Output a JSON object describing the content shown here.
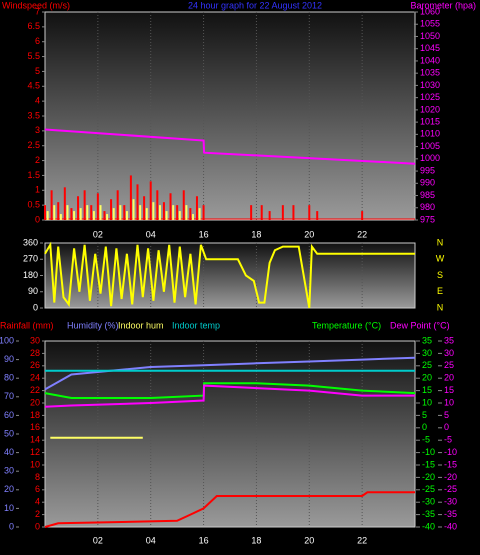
{
  "chart_data": [
    {
      "type": "line",
      "title": "24 hour graph for  22 August 2012",
      "ylabel": "Windspeed (m/s)",
      "y2label": "Barometer (hpa)",
      "axis_colors": {
        "y": "#ff0000",
        "y2": "#ff00ff",
        "title": "#3333ff"
      },
      "xlim": [
        0,
        14
      ],
      "xticks": [
        {
          "value": 2,
          "label": "02"
        },
        {
          "value": 4,
          "label": "04"
        },
        {
          "value": 6,
          "label": "16"
        },
        {
          "value": 8,
          "label": "18"
        },
        {
          "value": 10,
          "label": "20"
        },
        {
          "value": 12,
          "label": "22"
        }
      ],
      "ylim": [
        0,
        7
      ],
      "yticks": [
        0,
        0.5,
        1,
        1.5,
        2,
        2.5,
        3,
        3.5,
        4,
        4.5,
        5,
        5.5,
        6,
        6.5,
        7
      ],
      "y2lim": [
        975,
        1060
      ],
      "y2ticks": [
        975,
        980,
        985,
        990,
        995,
        1000,
        1005,
        1010,
        1015,
        1020,
        1025,
        1030,
        1035,
        1040,
        1045,
        1050,
        1055,
        1060
      ],
      "series": [
        {
          "type": "bar",
          "color": "#ff0000",
          "x": [
            0,
            0.25,
            0.5,
            0.75,
            1,
            1.25,
            1.5,
            1.75,
            2,
            2.25,
            2.5,
            2.75,
            3,
            3.25,
            3.5,
            3.75,
            4,
            4.25,
            4.5,
            4.75,
            5,
            5.25,
            5.5,
            5.75,
            6,
            7.8,
            8.2,
            8.5,
            9,
            9.4,
            10,
            10.3,
            12
          ],
          "values": [
            0.5,
            1,
            0.6,
            1.1,
            0.4,
            0.8,
            1,
            0.5,
            0.9,
            0.3,
            0.7,
            1,
            0.5,
            1.5,
            1.2,
            0.8,
            1.3,
            1,
            0.6,
            0.9,
            0.5,
            1,
            0.4,
            0.8,
            0.5,
            0.5,
            0.5,
            0.3,
            0.5,
            0.5,
            0.5,
            0.3,
            0.3
          ]
        },
        {
          "type": "bar",
          "color": "#ffff66",
          "x": [
            0.1,
            0.35,
            0.6,
            0.85,
            1.1,
            1.35,
            1.6,
            1.85,
            2.1,
            2.35,
            2.6,
            2.85,
            3.1,
            3.35,
            3.6,
            3.85,
            4.1,
            4.35,
            4.6,
            4.85,
            5.1,
            5.35,
            5.6,
            5.85
          ],
          "values": [
            0.3,
            0.5,
            0.2,
            0.5,
            0.3,
            0.4,
            0.5,
            0.3,
            0.5,
            0.2,
            0.4,
            0.5,
            0.3,
            0.7,
            0.5,
            0.4,
            0.6,
            0.5,
            0.3,
            0.5,
            0.3,
            0.5,
            0.2,
            0.4
          ]
        },
        {
          "type": "line",
          "axis": "y2",
          "color": "#ff00ff",
          "x": [
            0,
            6,
            6.02,
            14
          ],
          "values": [
            1012,
            1007.5,
            1002.5,
            998
          ]
        }
      ]
    },
    {
      "type": "line",
      "compass": [
        "N",
        "W",
        "S",
        "E",
        "N"
      ],
      "axis_colors": {
        "y": "#ffffff",
        "compass": "#ffff00"
      },
      "xlim": [
        0,
        14
      ],
      "xticks": [
        {
          "value": 2,
          "label": "02"
        },
        {
          "value": 4,
          "label": "04"
        },
        {
          "value": 6,
          "label": "16"
        },
        {
          "value": 8,
          "label": "18"
        },
        {
          "value": 10,
          "label": "20"
        },
        {
          "value": 12,
          "label": "22"
        }
      ],
      "ylim": [
        0,
        360
      ],
      "yticks": [
        0,
        90,
        180,
        270,
        360
      ],
      "series": [
        {
          "type": "line",
          "color": "#ffff00",
          "x": [
            0,
            0.2,
            0.35,
            0.5,
            0.7,
            0.9,
            1.1,
            1.3,
            1.5,
            1.7,
            1.9,
            2.1,
            2.3,
            2.5,
            2.7,
            2.9,
            3.1,
            3.3,
            3.5,
            3.7,
            3.9,
            4.1,
            4.3,
            4.5,
            4.7,
            4.9,
            5.1,
            5.3,
            5.5,
            5.7,
            5.9,
            6.1,
            7.3,
            7.6,
            7.9,
            8.1,
            8.3,
            8.5,
            8.7,
            9,
            9.6,
            10,
            10.1,
            10.3,
            10.5,
            14
          ],
          "values": [
            300,
            350,
            30,
            340,
            60,
            20,
            330,
            90,
            350,
            40,
            300,
            80,
            340,
            10,
            330,
            50,
            300,
            20,
            350,
            60,
            330,
            40,
            320,
            90,
            350,
            30,
            340,
            60,
            300,
            20,
            350,
            270,
            270,
            180,
            150,
            30,
            30,
            250,
            320,
            340,
            340,
            0,
            340,
            300,
            300,
            300
          ]
        }
      ]
    },
    {
      "type": "line",
      "axis_colors": {
        "y": "#8080ff",
        "y2": "#00ff00",
        "y2b": "#ff00ff",
        "y3": "#ff0000"
      },
      "xlim": [
        0,
        14
      ],
      "xticks": [
        {
          "value": 2,
          "label": "02"
        },
        {
          "value": 4,
          "label": "04"
        },
        {
          "value": 6,
          "label": "16"
        },
        {
          "value": 8,
          "label": "18"
        },
        {
          "value": 10,
          "label": "20"
        },
        {
          "value": 12,
          "label": "22"
        }
      ],
      "ylim": [
        0,
        100
      ],
      "yticks": [
        0,
        10,
        20,
        30,
        40,
        50,
        60,
        70,
        80,
        90,
        100
      ],
      "y2lim": [
        -40,
        35
      ],
      "y2ticks": [
        -40,
        -35,
        -30,
        -25,
        -20,
        -15,
        -10,
        -5,
        0,
        5,
        10,
        15,
        20,
        25,
        30,
        35
      ],
      "y3lim": [
        0,
        30
      ],
      "y3ticks": [
        0,
        2,
        4,
        6,
        8,
        10,
        12,
        14,
        16,
        18,
        20,
        22,
        24,
        26,
        28,
        30
      ],
      "series": [
        {
          "name": "Rainfall (mm)",
          "axis": "y3",
          "color": "#ff0000",
          "x": [
            0,
            0.5,
            5,
            5.5,
            6,
            6.5,
            12,
            12.2,
            14
          ],
          "values": [
            0,
            0.6,
            1,
            2,
            3,
            5,
            5,
            5.6,
            5.6
          ]
        },
        {
          "name": "Humidity (%)",
          "axis": "y",
          "color": "#8080ff",
          "x": [
            0,
            1,
            4,
            6,
            8,
            10,
            12,
            14
          ],
          "values": [
            74,
            82,
            86,
            87,
            88,
            89,
            90,
            91
          ]
        },
        {
          "name": "Indoor hum",
          "axis": "y",
          "color": "#ffff66",
          "x": [
            0.2,
            3.7
          ],
          "values": [
            48,
            48
          ]
        },
        {
          "name": "Indoor temp",
          "axis": "y2",
          "color": "#00cccc",
          "x": [
            0,
            14
          ],
          "values": [
            23,
            23
          ]
        },
        {
          "name": "Temperature (°C)",
          "axis": "y2",
          "color": "#00ff00",
          "x": [
            0,
            1,
            4,
            6,
            6.02,
            8,
            10,
            12,
            14
          ],
          "values": [
            14,
            12,
            12,
            13,
            18,
            18,
            17,
            15,
            14
          ]
        },
        {
          "name": "Dew Point (°C)",
          "axis": "y2",
          "color": "#ff00ff",
          "x": [
            0,
            1,
            4,
            6,
            6.02,
            8,
            10,
            12,
            14
          ],
          "values": [
            8.5,
            9,
            10,
            11,
            17,
            16,
            15,
            13,
            13
          ]
        }
      ]
    }
  ]
}
